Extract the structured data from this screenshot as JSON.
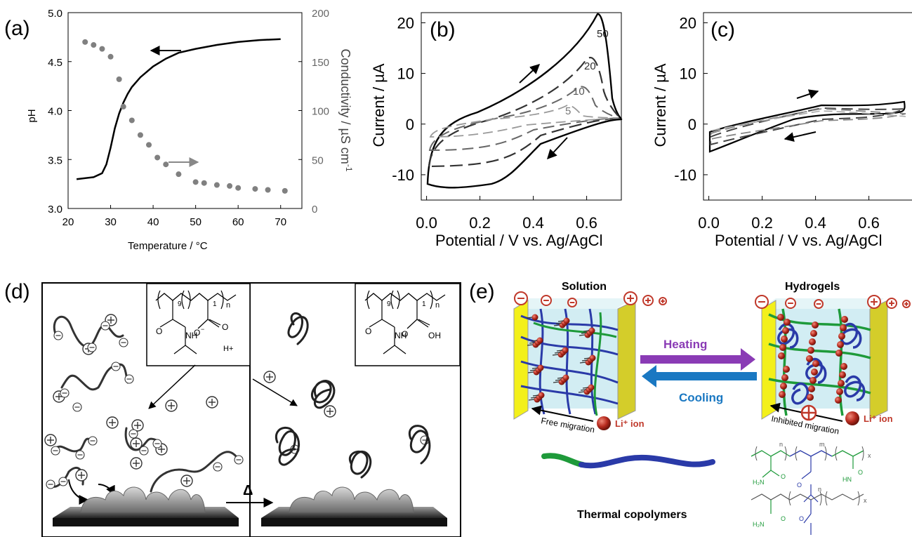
{
  "panels": {
    "a": {
      "label": "(a)"
    },
    "b": {
      "label": "(b)"
    },
    "c": {
      "label": "(c)"
    },
    "d": {
      "label": "(d)"
    },
    "e": {
      "label": "(e)"
    }
  },
  "chart_data": [
    {
      "panel": "a",
      "type": "line",
      "xlabel": "Temperature / °C",
      "ylabel": "pH",
      "y2label": "Conductivity / µS cm",
      "y2label_sup": "-1",
      "xlim": [
        20,
        75
      ],
      "ylim": [
        3.0,
        5.0
      ],
      "y2lim": [
        0,
        200
      ],
      "xticks": [
        "20",
        "30",
        "40",
        "50",
        "60",
        "70"
      ],
      "yticks": [
        "3.0",
        "3.5",
        "4.0",
        "4.5",
        "5.0"
      ],
      "y2ticks": [
        "0",
        "50",
        "100",
        "150",
        "200"
      ],
      "grid": false,
      "series": [
        {
          "axis": "left",
          "style": "solid-line",
          "color": "#000000",
          "x": [
            22,
            26,
            28,
            29,
            30,
            31,
            32,
            33,
            34,
            35,
            37,
            40,
            43,
            46,
            50,
            55,
            60,
            65,
            70
          ],
          "y": [
            3.3,
            3.32,
            3.36,
            3.45,
            3.62,
            3.82,
            3.97,
            4.08,
            4.17,
            4.24,
            4.34,
            4.45,
            4.53,
            4.59,
            4.63,
            4.67,
            4.7,
            4.72,
            4.73
          ]
        },
        {
          "axis": "right",
          "style": "dots",
          "color": "#808080",
          "x": [
            24,
            26,
            28,
            30,
            32,
            33,
            35,
            37,
            39,
            41,
            43,
            46,
            50,
            52,
            55,
            58,
            60,
            64,
            67,
            71
          ],
          "y": [
            170,
            167,
            163,
            155,
            132,
            104,
            90,
            75,
            65,
            52,
            45,
            35,
            27,
            26,
            24,
            23,
            21,
            20,
            19,
            18
          ]
        }
      ]
    },
    {
      "panel": "b",
      "type": "line",
      "xlabel": "Potential / V vs. Ag/AgCl",
      "ylabel": "Current / µA",
      "xlim": [
        -0.02,
        0.73
      ],
      "ylim": [
        -15,
        22
      ],
      "xticks": [
        "0.0",
        "0.2",
        "0.4",
        "0.6"
      ],
      "yticks": [
        "-10",
        "0",
        "10",
        "20"
      ],
      "curve_labels": [
        "50",
        "20",
        "10",
        "5"
      ]
    },
    {
      "panel": "c",
      "type": "line",
      "xlabel": "Potential / V vs. Ag/AgCl",
      "ylabel": "Current / µA",
      "xlim": [
        -0.02,
        0.73
      ],
      "ylim": [
        -15,
        22
      ],
      "xticks": [
        "0.0",
        "0.2",
        "0.4",
        "0.6"
      ],
      "yticks": [
        "-10",
        "0",
        "10",
        "20"
      ]
    }
  ],
  "schematic_d": {
    "left_struct": {
      "sub9": "9",
      "sub1": "1",
      "subn": "n",
      "o_minus": "O",
      "minus_sup": "−",
      "h_plus": "H+",
      "o1": "O",
      "o2": "O",
      "nh": "NH"
    },
    "right_struct": {
      "sub9": "9",
      "sub1": "1",
      "subn": "n",
      "oh": "OH",
      "o1": "O",
      "o2": "O",
      "nh": "NH"
    },
    "delta": "Δ"
  },
  "schematic_e": {
    "left_title": "Solution",
    "right_title": "Hydrogels",
    "heating": "Heating",
    "cooling": "Cooling",
    "free_migration": "Free migration",
    "inhibited_migration": "Inhibited migration",
    "li_ion_left": "Li⁺ ion",
    "li_ion_right": "Li⁺ ion",
    "copolymer_label": "Thermal  copolymers",
    "chem": {
      "n": "n",
      "m": "m",
      "x": "x",
      "h2n": "H₂N",
      "o": "O",
      "hn": "HN"
    },
    "colors": {
      "heating": "#8a3bb5",
      "cooling": "#1a78c2",
      "ion": "#c0392b",
      "electrode": "#e6e04a",
      "green": "#1e9a3a",
      "blue": "#2a3aa8"
    }
  }
}
